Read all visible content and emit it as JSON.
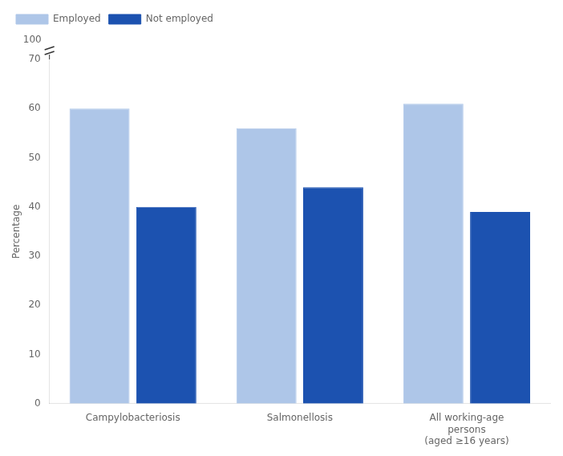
{
  "chart_data": {
    "type": "bar",
    "categories": [
      "Campylobacteriosis",
      "Salmonellosis",
      "All working-age\npersons\n(aged ≥16 years)"
    ],
    "series": [
      {
        "name": "Employed",
        "color": "#aec6e8",
        "values": [
          60,
          56,
          61
        ]
      },
      {
        "name": "Not employed",
        "color": "#1c52b0",
        "values": [
          40,
          44,
          39
        ]
      }
    ],
    "ylabel": "Percentage",
    "ylim": [
      0,
      70
    ],
    "yticks": [
      0,
      10,
      20,
      30,
      40,
      50,
      60,
      70
    ],
    "grid": false,
    "legend": "upper left",
    "annotations": [
      {
        "text": "100"
      }
    ]
  }
}
